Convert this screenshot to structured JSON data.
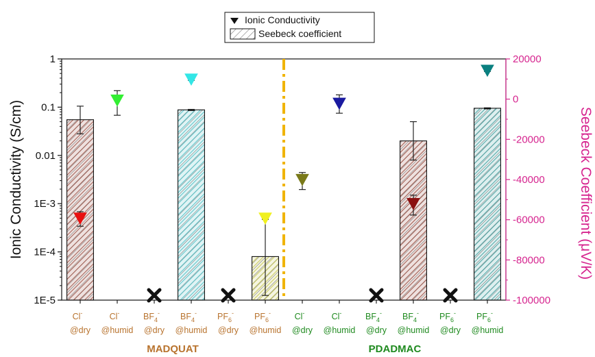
{
  "chart_data": {
    "type": "bar",
    "ylabel_left": "Ionic Conductivity (S/cm)",
    "ylabel_right": "Seebeck Coefficient (μV/K)",
    "left_axis": {
      "scale": "log",
      "range": [
        1e-05,
        1
      ],
      "ticks": [
        "1E-5",
        "1E-4",
        "1E-3",
        "0.01",
        "0.1",
        "1"
      ]
    },
    "right_axis": {
      "scale": "linear",
      "range": [
        -100000,
        20000
      ],
      "ticks": [
        "20000",
        "0",
        "-20000",
        "-40000",
        "-60000",
        "-80000",
        "-100000"
      ],
      "color": "#d6258f"
    },
    "legend": {
      "position": "top-center",
      "entries": [
        {
          "label": "Ionic Conductivity",
          "marker": "filled-down-triangle"
        },
        {
          "label": "Seebeck coefficient",
          "marker": "hatched-box"
        }
      ]
    },
    "groups": [
      {
        "name": "MADQUAT",
        "color": "#b8732e",
        "category_range": [
          0,
          5
        ]
      },
      {
        "name": "PDADMAC",
        "color": "#1f8a1f",
        "category_range": [
          6,
          11
        ]
      }
    ],
    "divider": {
      "after_category": 5,
      "color": "#f0b400",
      "style": "dash-dot"
    },
    "categories": [
      {
        "ion": "Cl",
        "sup": "-",
        "sub": "",
        "cond": "@dry",
        "group": "MADQUAT"
      },
      {
        "ion": "Cl",
        "sup": "-",
        "sub": "",
        "cond": "@humid",
        "group": "MADQUAT"
      },
      {
        "ion": "BF",
        "sup": "-",
        "sub": "4",
        "cond": "@dry",
        "group": "MADQUAT"
      },
      {
        "ion": "BF",
        "sup": "-",
        "sub": "4",
        "cond": "@humid",
        "group": "MADQUAT"
      },
      {
        "ion": "PF",
        "sup": "-",
        "sub": "6",
        "cond": "@dry",
        "group": "MADQUAT"
      },
      {
        "ion": "PF",
        "sup": "-",
        "sub": "6",
        "cond": "@humid",
        "group": "MADQUAT"
      },
      {
        "ion": "Cl",
        "sup": "-",
        "sub": "",
        "cond": "@dry",
        "group": "PDADMAC"
      },
      {
        "ion": "Cl",
        "sup": "-",
        "sub": "",
        "cond": "@humid",
        "group": "PDADMAC"
      },
      {
        "ion": "BF",
        "sup": "-",
        "sub": "4",
        "cond": "@dry",
        "group": "PDADMAC"
      },
      {
        "ion": "BF",
        "sup": "-",
        "sub": "4",
        "cond": "@humid",
        "group": "PDADMAC"
      },
      {
        "ion": "PF",
        "sup": "-",
        "sub": "6",
        "cond": "@dry",
        "group": "PDADMAC"
      },
      {
        "ion": "PF",
        "sup": "-",
        "sub": "6",
        "cond": "@humid",
        "group": "PDADMAC"
      }
    ],
    "series": [
      {
        "name": "Seebeck coefficient",
        "axis": "left",
        "kind": "hatched-bar",
        "values": [
          0.055,
          null,
          null,
          0.088,
          null,
          8e-05,
          null,
          null,
          null,
          0.02,
          null,
          0.095
        ],
        "err_low": [
          0.028,
          null,
          null,
          0.085,
          null,
          1.25e-05,
          null,
          null,
          null,
          0.008,
          null,
          0.092
        ],
        "err_high": [
          0.105,
          null,
          null,
          0.09,
          null,
          0.00048,
          null,
          null,
          null,
          0.05,
          null,
          0.097
        ],
        "colors": [
          "#a05a4e",
          null,
          null,
          "#55c2c8",
          null,
          "#c8c858",
          null,
          null,
          null,
          "#a05a4e",
          null,
          "#4aa4a4"
        ]
      },
      {
        "name": "Ionic Conductivity",
        "axis": "left",
        "kind": "down-triangle",
        "values": [
          0.0005,
          0.14,
          null,
          0.38,
          null,
          0.0005,
          null,
          0.12,
          null,
          0.001,
          null,
          0.58
        ],
        "err_low": [
          0.00034,
          0.068,
          null,
          0.36,
          null,
          0.00047,
          null,
          0.075,
          null,
          0.00058,
          null,
          0.55
        ],
        "err_high": [
          0.00068,
          0.22,
          null,
          0.4,
          null,
          0.00052,
          null,
          0.18,
          null,
          0.0015,
          null,
          0.6
        ],
        "colors": [
          "#e81010",
          "#33ee33",
          null,
          "#33e6e6",
          null,
          "#f0f020",
          null,
          "#1a1aa0",
          null,
          "#8b1010",
          null,
          "#0a8080"
        ]
      },
      {
        "name": "Seebeck coefficient (right axis)",
        "axis": "right",
        "kind": "down-triangle",
        "values": [
          null,
          null,
          null,
          null,
          null,
          null,
          -40000,
          null,
          null,
          null,
          null,
          null
        ],
        "err_low": [
          null,
          null,
          null,
          null,
          null,
          null,
          -45000,
          null,
          null,
          null,
          null,
          null
        ],
        "err_high": [
          null,
          null,
          null,
          null,
          null,
          null,
          -36500,
          null,
          null,
          null,
          null,
          null
        ],
        "colors": [
          null,
          null,
          null,
          null,
          null,
          null,
          "#7a7a1a",
          null,
          null,
          null,
          null,
          null
        ]
      }
    ],
    "not_measured": {
      "marker": "cross",
      "categories": [
        2,
        4,
        8,
        10
      ]
    }
  }
}
